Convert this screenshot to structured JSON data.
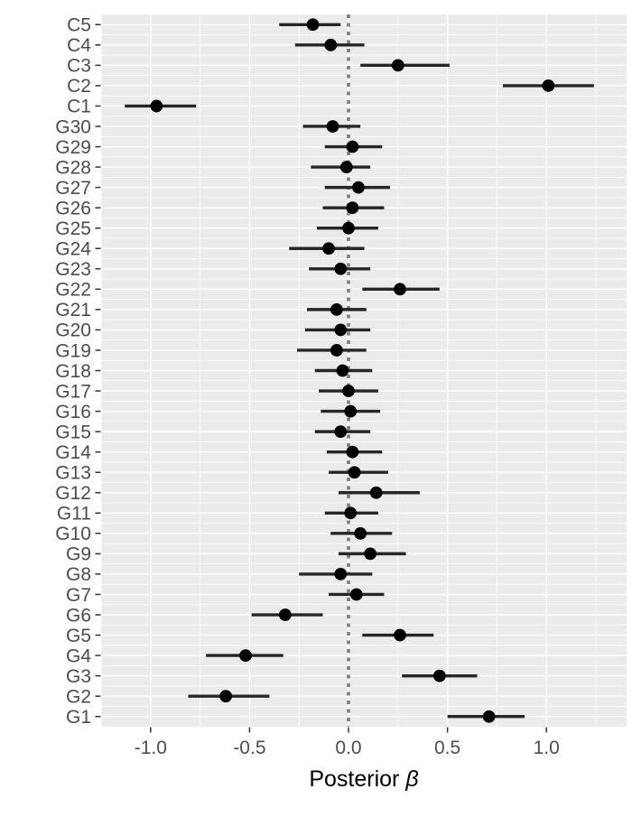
{
  "figure": {
    "background": "#FFFFFF"
  },
  "chart_data": {
    "type": "scatter",
    "subtype": "forest-plot-with-error-bars",
    "orientation": "horizontal",
    "title": "",
    "xlabel": "Posterior β",
    "xlabel_text": "Posterior",
    "xlabel_symbol": "β",
    "ylabel": "",
    "xlim": [
      -1.25,
      1.405
    ],
    "x_ticks": [
      -1.0,
      -0.5,
      0.0,
      0.5,
      1.0
    ],
    "x_tick_labels": [
      "-1.0",
      "-0.5",
      "0.0",
      "0.5",
      "1.0"
    ],
    "x_minor_gridlines": [
      -1.25,
      -0.75,
      -0.25,
      0.25,
      0.75,
      1.25
    ],
    "reference_line": {
      "x": 0,
      "style": "dashed",
      "color": "#7E7E7E"
    },
    "grid": "on",
    "legend": "none",
    "colors": {
      "panel_bg": "#EBEBEB",
      "gridline": "#FFFFFF",
      "point": "#000000",
      "error_bar": "#262626",
      "axis_text": "#4D4D4D",
      "tick_mark": "#333333",
      "axis_title": "#000000"
    },
    "categories_top_to_bottom": [
      "C5",
      "C4",
      "C3",
      "C2",
      "C1",
      "G30",
      "G29",
      "G28",
      "G27",
      "G26",
      "G25",
      "G24",
      "G23",
      "G22",
      "G21",
      "G20",
      "G19",
      "G18",
      "G17",
      "G16",
      "G15",
      "G14",
      "G13",
      "G12",
      "G11",
      "G10",
      "G9",
      "G8",
      "G7",
      "G6",
      "G5",
      "G4",
      "G3",
      "G2",
      "G1"
    ],
    "rows": [
      {
        "label": "C5",
        "mean": -0.18,
        "lower": -0.35,
        "upper": -0.04
      },
      {
        "label": "C4",
        "mean": -0.09,
        "lower": -0.27,
        "upper": 0.08
      },
      {
        "label": "C3",
        "mean": 0.25,
        "lower": 0.06,
        "upper": 0.51
      },
      {
        "label": "C2",
        "mean": 1.01,
        "lower": 0.78,
        "upper": 1.24
      },
      {
        "label": "C1",
        "mean": -0.97,
        "lower": -1.13,
        "upper": -0.77
      },
      {
        "label": "G30",
        "mean": -0.08,
        "lower": -0.23,
        "upper": 0.06
      },
      {
        "label": "G29",
        "mean": 0.02,
        "lower": -0.12,
        "upper": 0.17
      },
      {
        "label": "G28",
        "mean": -0.01,
        "lower": -0.19,
        "upper": 0.11
      },
      {
        "label": "G27",
        "mean": 0.05,
        "lower": -0.12,
        "upper": 0.21
      },
      {
        "label": "G26",
        "mean": 0.02,
        "lower": -0.13,
        "upper": 0.18
      },
      {
        "label": "G25",
        "mean": 0.0,
        "lower": -0.16,
        "upper": 0.15
      },
      {
        "label": "G24",
        "mean": -0.1,
        "lower": -0.3,
        "upper": 0.08
      },
      {
        "label": "G23",
        "mean": -0.04,
        "lower": -0.2,
        "upper": 0.11
      },
      {
        "label": "G22",
        "mean": 0.26,
        "lower": 0.07,
        "upper": 0.46
      },
      {
        "label": "G21",
        "mean": -0.06,
        "lower": -0.21,
        "upper": 0.09
      },
      {
        "label": "G20",
        "mean": -0.04,
        "lower": -0.22,
        "upper": 0.11
      },
      {
        "label": "G19",
        "mean": -0.06,
        "lower": -0.26,
        "upper": 0.09
      },
      {
        "label": "G18",
        "mean": -0.03,
        "lower": -0.17,
        "upper": 0.12
      },
      {
        "label": "G17",
        "mean": 0.0,
        "lower": -0.15,
        "upper": 0.15
      },
      {
        "label": "G16",
        "mean": 0.01,
        "lower": -0.14,
        "upper": 0.16
      },
      {
        "label": "G15",
        "mean": -0.04,
        "lower": -0.17,
        "upper": 0.11
      },
      {
        "label": "G14",
        "mean": 0.02,
        "lower": -0.11,
        "upper": 0.17
      },
      {
        "label": "G13",
        "mean": 0.03,
        "lower": -0.1,
        "upper": 0.2
      },
      {
        "label": "G12",
        "mean": 0.14,
        "lower": -0.05,
        "upper": 0.36
      },
      {
        "label": "G11",
        "mean": 0.01,
        "lower": -0.12,
        "upper": 0.15
      },
      {
        "label": "G10",
        "mean": 0.06,
        "lower": -0.09,
        "upper": 0.22
      },
      {
        "label": "G9",
        "mean": 0.11,
        "lower": -0.05,
        "upper": 0.29
      },
      {
        "label": "G8",
        "mean": -0.04,
        "lower": -0.25,
        "upper": 0.12
      },
      {
        "label": "G7",
        "mean": 0.04,
        "lower": -0.1,
        "upper": 0.18
      },
      {
        "label": "G6",
        "mean": -0.32,
        "lower": -0.49,
        "upper": -0.13
      },
      {
        "label": "G5",
        "mean": 0.26,
        "lower": 0.07,
        "upper": 0.43
      },
      {
        "label": "G4",
        "mean": -0.52,
        "lower": -0.72,
        "upper": -0.33
      },
      {
        "label": "G3",
        "mean": 0.46,
        "lower": 0.27,
        "upper": 0.65
      },
      {
        "label": "G2",
        "mean": -0.62,
        "lower": -0.81,
        "upper": -0.4
      },
      {
        "label": "G1",
        "mean": 0.71,
        "lower": 0.5,
        "upper": 0.89
      }
    ]
  }
}
